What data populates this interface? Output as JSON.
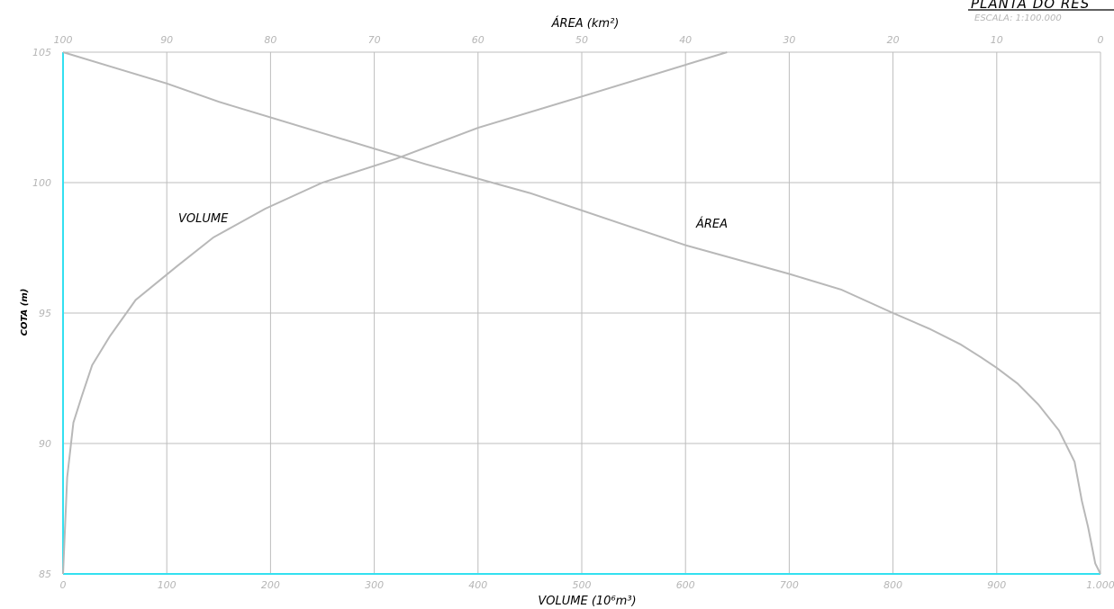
{
  "header": {
    "title": "PLANTA DO RES",
    "scale": "ESCALA: 1:100.000"
  },
  "colors": {
    "grid": "#bdbdbd",
    "curve": "#b8b8b8",
    "axis_highlight": "#33e0f0",
    "tick_text": "#b5b5b5"
  },
  "chart_data": {
    "type": "line",
    "title": "",
    "xlabel": "VOLUME (10⁶m³)",
    "x2label": "ÁREA (km²)",
    "ylabel": "COTA (m)",
    "xlim": [
      0,
      1000
    ],
    "x2lim": [
      100,
      0
    ],
    "ylim": [
      85,
      105
    ],
    "grid": true,
    "x_ticks": [
      "0",
      "100",
      "200",
      "300",
      "400",
      "500",
      "600",
      "700",
      "800",
      "900",
      "1.000"
    ],
    "x2_ticks": [
      "100",
      "90",
      "80",
      "70",
      "60",
      "50",
      "40",
      "30",
      "20",
      "10",
      "0"
    ],
    "y_ticks": [
      "85",
      "90",
      "95",
      "100",
      "105"
    ],
    "series": [
      {
        "name": "VOLUME",
        "axis": "volume",
        "x": [
          0,
          4,
          10,
          18,
          28,
          45,
          70,
          110,
          145,
          195,
          250,
          320,
          400,
          500,
          640
        ],
        "y": [
          85,
          88.7,
          90.8,
          91.8,
          93,
          94.1,
          95.5,
          96.8,
          97.9,
          99,
          100,
          100.9,
          102.1,
          103.3,
          105
        ]
      },
      {
        "name": "ÁREA",
        "axis": "area",
        "x": [
          0,
          0.5,
          0.8,
          1.2,
          1.8,
          2.5,
          4,
          6,
          8,
          10,
          11.5,
          13.5,
          16.5,
          20,
          25,
          30,
          40,
          46,
          55,
          65,
          75,
          85,
          90,
          95,
          100
        ],
        "y": [
          85,
          85.4,
          86,
          86.8,
          87.8,
          89.3,
          90.5,
          91.5,
          92.3,
          92.9,
          93.3,
          93.8,
          94.4,
          95,
          95.9,
          96.5,
          97.6,
          98.4,
          99.6,
          100.7,
          101.9,
          103.1,
          103.8,
          104.4,
          105
        ]
      }
    ]
  }
}
